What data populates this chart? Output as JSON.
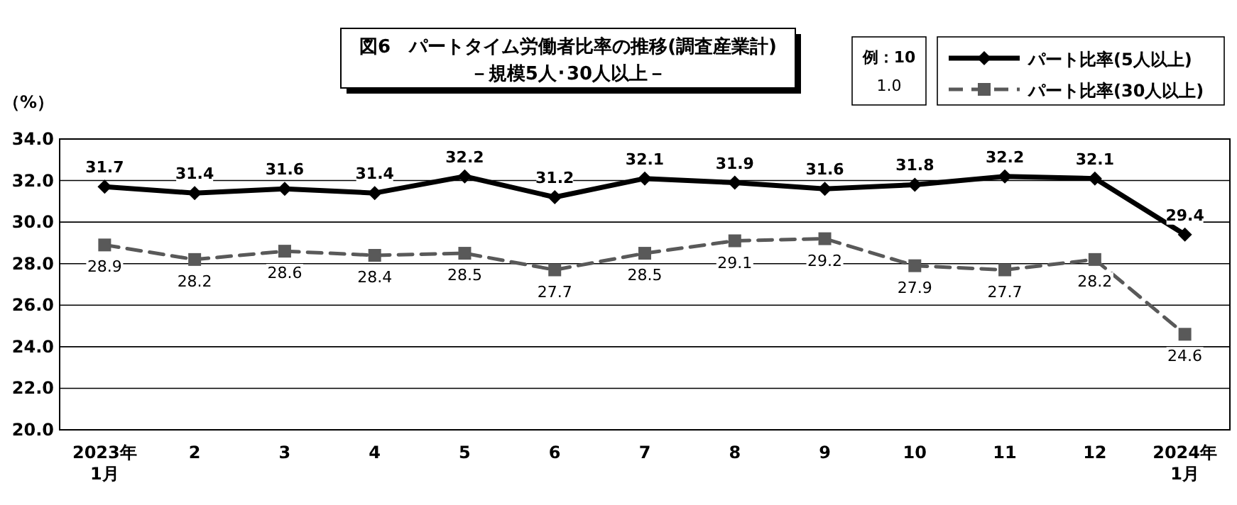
{
  "chart_data": {
    "type": "line",
    "title": "図6　パートタイム労働者比率の推移(調査産業計)",
    "subtitle": "－規模5人･30人以上－",
    "ylabel": "（%）",
    "categories": [
      "2023年\n1月",
      "2",
      "3",
      "4",
      "5",
      "6",
      "7",
      "8",
      "9",
      "10",
      "11",
      "12",
      "2024年\n1月"
    ],
    "series": [
      {
        "name": "パート比率(5人以上)",
        "color": "#000000",
        "marker": "diamond",
        "line_style": "solid",
        "values": [
          31.7,
          31.4,
          31.6,
          31.4,
          32.2,
          31.2,
          32.1,
          31.9,
          31.6,
          31.8,
          32.2,
          32.1,
          29.4
        ]
      },
      {
        "name": "パート比率(30人以上)",
        "color": "#595959",
        "marker": "square",
        "line_style": "dashed",
        "values": [
          28.9,
          28.2,
          28.6,
          28.4,
          28.5,
          27.7,
          28.5,
          29.1,
          29.2,
          27.9,
          27.7,
          28.2,
          24.6
        ]
      }
    ],
    "ylim": [
      20,
      34
    ],
    "yticks": [
      {
        "value": 20,
        "label": "20.0"
      },
      {
        "value": 22,
        "label": "22.0"
      },
      {
        "value": 24,
        "label": "24.0"
      },
      {
        "value": 26,
        "label": "26.0"
      },
      {
        "value": 28,
        "label": "28.0"
      },
      {
        "value": 30,
        "label": "30.0"
      },
      {
        "value": 32,
        "label": "32.0"
      },
      {
        "value": 34,
        "label": "34.0"
      }
    ],
    "grid": "y",
    "legend": "top right",
    "data_labels": true,
    "annotations": [
      "例：10",
      "1.0"
    ]
  }
}
